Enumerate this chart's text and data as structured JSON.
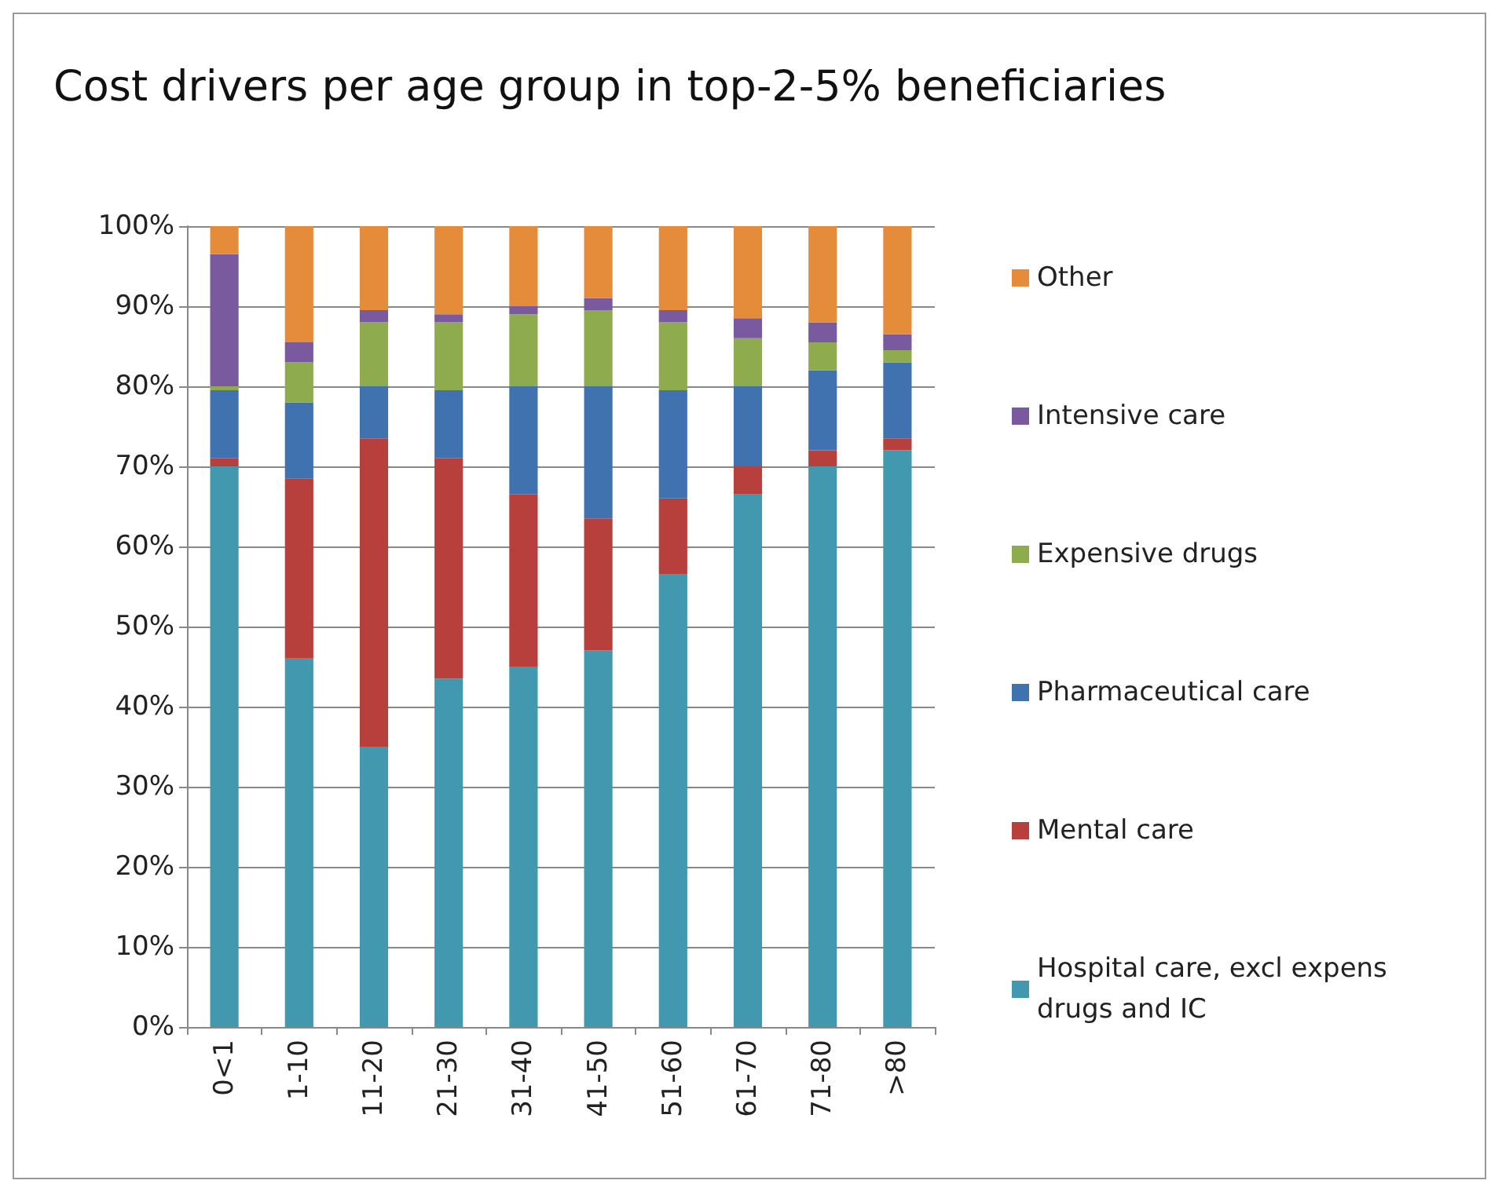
{
  "chart_data": {
    "type": "bar",
    "title": "Cost drivers per age group in top-2-5% beneficiaries",
    "stacked": true,
    "categories": [
      "0<1",
      "1-10",
      "11-20",
      "21-30",
      "31-40",
      "41-50",
      "51-60",
      "61-70",
      "71-80",
      ">80"
    ],
    "series": [
      {
        "name": "Hospital care, excl expens drugs and IC",
        "color": "#4198af",
        "values": [
          70,
          46,
          35,
          43.5,
          45,
          47,
          56.5,
          66.5,
          70,
          72
        ]
      },
      {
        "name": "Mental care",
        "color": "#b7403d",
        "values": [
          1,
          22.5,
          38.5,
          27.5,
          21.5,
          16.5,
          9.5,
          3.5,
          2,
          1.5
        ]
      },
      {
        "name": "Pharmaceutical care",
        "color": "#4072b0",
        "values": [
          8.5,
          9.5,
          6.5,
          8.5,
          13.5,
          16.5,
          13.5,
          10,
          10,
          9.5
        ]
      },
      {
        "name": "Expensive drugs",
        "color": "#8eac4d",
        "values": [
          0.5,
          5,
          8,
          8.5,
          9,
          9.5,
          8.5,
          6,
          3.5,
          1.5
        ]
      },
      {
        "name": "Intensive care",
        "color": "#7a5a9e",
        "values": [
          16.5,
          2.5,
          1.5,
          1,
          1,
          1.5,
          1.5,
          2.5,
          2.5,
          2
        ]
      },
      {
        "name": "Other",
        "color": "#e58c3a",
        "values": [
          3.5,
          14.5,
          10.5,
          11,
          10,
          9,
          10.5,
          11.5,
          12,
          13.5
        ]
      }
    ],
    "ylim": [
      0,
      100
    ],
    "yticks": [
      {
        "value": 0,
        "label": "0%"
      },
      {
        "value": 10,
        "label": "10%"
      },
      {
        "value": 20,
        "label": "20%"
      },
      {
        "value": 30,
        "label": "30%"
      },
      {
        "value": 40,
        "label": "40%"
      },
      {
        "value": 50,
        "label": "50%"
      },
      {
        "value": 60,
        "label": "60%"
      },
      {
        "value": 70,
        "label": "70%"
      },
      {
        "value": 80,
        "label": "80%"
      },
      {
        "value": 90,
        "label": "90%"
      },
      {
        "value": 100,
        "label": "100%"
      }
    ],
    "grid": "y",
    "legend": "right"
  }
}
